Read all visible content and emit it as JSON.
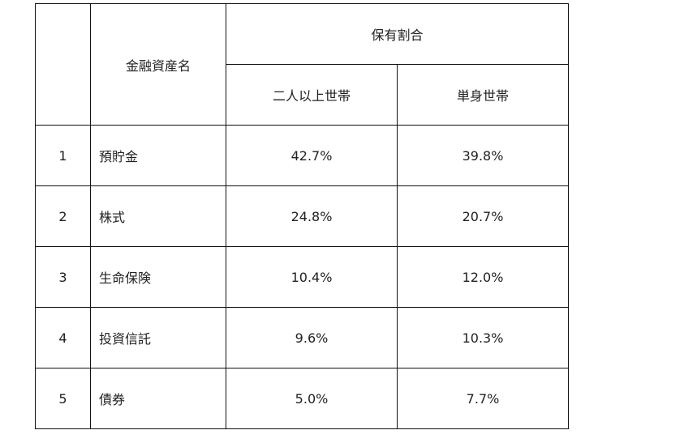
{
  "table": {
    "header": {
      "group": "保有割合",
      "name_col": "金融資産名",
      "sub": [
        "二人以上世帯",
        "単身世帯"
      ]
    },
    "rows": [
      [
        "1",
        "預貯金",
        "42.7%",
        "39.8%"
      ],
      [
        "2",
        "株式",
        "24.8%",
        "20.7%"
      ],
      [
        "3",
        "生命保険",
        "10.4%",
        "12.0%"
      ],
      [
        "4",
        "投資信託",
        "9.6%",
        "10.3%"
      ],
      [
        "5",
        "債券",
        "5.0%",
        "7.7%"
      ]
    ]
  }
}
